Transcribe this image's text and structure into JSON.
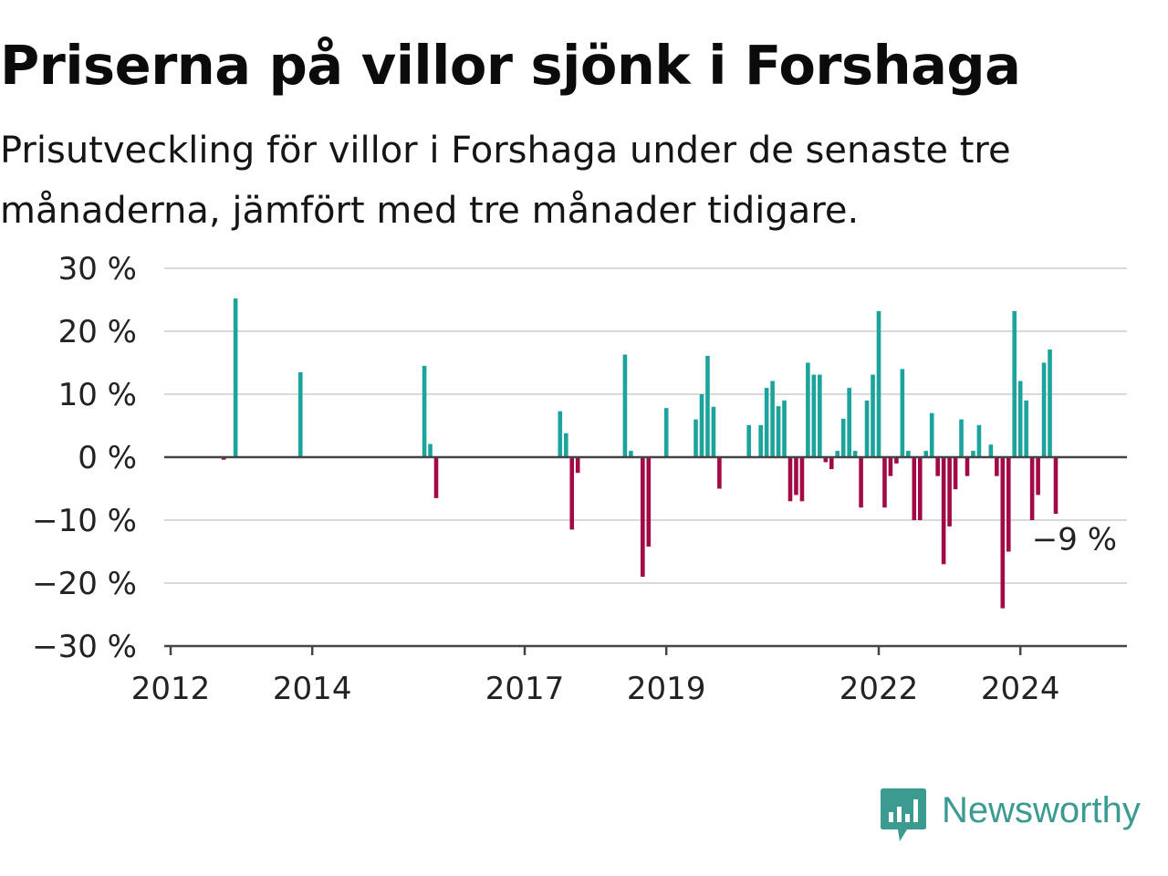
{
  "title": "Priserna på villor sjönk i Forshaga",
  "subtitle": "Prisutveckling för villor i Forshaga under de senaste tre månaderna, jämfört med tre månader tidigare.",
  "brand": {
    "name": "Newsworthy",
    "icon": "newsworthy-bar-chart-icon"
  },
  "colors": {
    "positive": "#1ba39c",
    "negative": "#a10a46",
    "grid": "#d9d9d9",
    "axis": "#444444",
    "text": "#222222"
  },
  "chart_data": {
    "type": "bar",
    "unit": "%",
    "ylim": [
      -30,
      30
    ],
    "y_ticks": [
      30,
      20,
      10,
      0,
      -10,
      -20,
      -30
    ],
    "y_tick_labels": [
      "30 %",
      "20 %",
      "10 %",
      "0 %",
      "−10 %",
      "−20 %",
      "−30 %"
    ],
    "x_ticks": [
      "2012",
      "2014",
      "2017",
      "2019",
      "2022",
      "2024"
    ],
    "grid": true,
    "annotation": "−9 %",
    "x": [
      "2012-10",
      "2012-12",
      "2013-11",
      "2015-08",
      "2015-09",
      "2015-10",
      "2017-07",
      "2017-08",
      "2017-09",
      "2017-10",
      "2018-06",
      "2018-07",
      "2018-09",
      "2018-10",
      "2019-01",
      "2019-06",
      "2019-07",
      "2019-08",
      "2019-09",
      "2019-10",
      "2020-03",
      "2020-05",
      "2020-06",
      "2020-07",
      "2020-08",
      "2020-09",
      "2020-10",
      "2020-11",
      "2020-12",
      "2021-01",
      "2021-02",
      "2021-03",
      "2021-04",
      "2021-05",
      "2021-06",
      "2021-07",
      "2021-08",
      "2021-09",
      "2021-10",
      "2021-11",
      "2021-12",
      "2022-01",
      "2022-02",
      "2022-03",
      "2022-04",
      "2022-05",
      "2022-06",
      "2022-07",
      "2022-08",
      "2022-09",
      "2022-10",
      "2022-11",
      "2022-12",
      "2023-01",
      "2023-02",
      "2023-03",
      "2023-04",
      "2023-05",
      "2023-06",
      "2023-07",
      "2023-08",
      "2023-09",
      "2023-10",
      "2023-11",
      "2023-12",
      "2024-01",
      "2024-02",
      "2024-03",
      "2024-04",
      "2024-05",
      "2024-06",
      "2024-07",
      "2024-08",
      "2024-09",
      "2024-10"
    ],
    "values": [
      -0.4,
      25.2,
      13.5,
      14.5,
      2.1,
      -6.5,
      7.3,
      3.8,
      -11.5,
      -2.5,
      16.3,
      1.0,
      -19.0,
      -14.2,
      7.8,
      6.0,
      10.0,
      16.1,
      8.0,
      -5.0,
      5.1,
      5.1,
      11.0,
      12.1,
      8.1,
      9.0,
      -7.0,
      -6.0,
      -7.0,
      15.0,
      13.1,
      13.1,
      -0.8,
      -1.9,
      1.0,
      6.1,
      11.0,
      1.0,
      -8.0,
      9.0,
      13.1,
      23.2,
      -8.0,
      -3.0,
      -1.0,
      14.0,
      1.0,
      -10.0,
      -10.0,
      1.0,
      7.0,
      -3.0,
      -17.0,
      -11.0,
      -5.1,
      6.0,
      -3.0,
      1.0,
      5.1,
      0.0,
      2.0,
      -3.0,
      -24.0,
      -15.0,
      23.2,
      12.1,
      9.0,
      -10.0,
      -6.0,
      15.0,
      17.1,
      -9.0,
      0,
      0,
      0
    ]
  }
}
